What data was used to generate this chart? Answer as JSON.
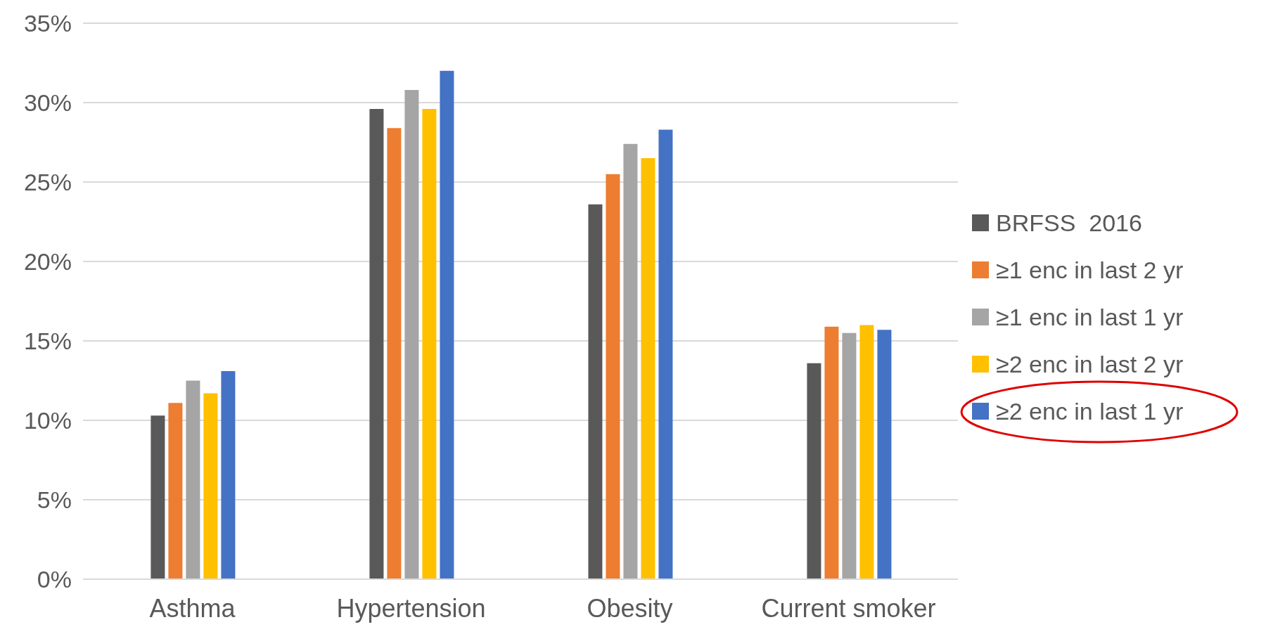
{
  "chart_data": {
    "type": "bar",
    "categories": [
      "Asthma",
      "Hypertension",
      "Obesity",
      "Current smoker"
    ],
    "series": [
      {
        "name": "BRFSS  2016",
        "color": "#595959",
        "values": [
          10.3,
          29.6,
          23.6,
          13.6
        ]
      },
      {
        "name": "≥1 enc in last 2 yr",
        "color": "#ed7d31",
        "values": [
          11.1,
          28.4,
          25.5,
          15.9
        ]
      },
      {
        "name": "≥1 enc in last 1 yr",
        "color": "#a5a5a5",
        "values": [
          12.5,
          30.8,
          27.4,
          15.5
        ]
      },
      {
        "name": "≥2 enc in last 2 yr",
        "color": "#ffc000",
        "values": [
          11.7,
          29.6,
          26.5,
          16.0
        ]
      },
      {
        "name": "≥2 enc in last 1 yr",
        "color": "#4472c4",
        "values": [
          13.1,
          32.0,
          28.3,
          15.7
        ]
      }
    ],
    "ylim": [
      0,
      35
    ],
    "yticks": [
      {
        "value": 0,
        "label": "0%"
      },
      {
        "value": 5,
        "label": "5%"
      },
      {
        "value": 10,
        "label": "10%"
      },
      {
        "value": 15,
        "label": "15%"
      },
      {
        "value": 20,
        "label": "20%"
      },
      {
        "value": 25,
        "label": "25%"
      },
      {
        "value": 30,
        "label": "30%"
      },
      {
        "value": 35,
        "label": "35%"
      }
    ],
    "grid": "y",
    "legend": "right"
  }
}
